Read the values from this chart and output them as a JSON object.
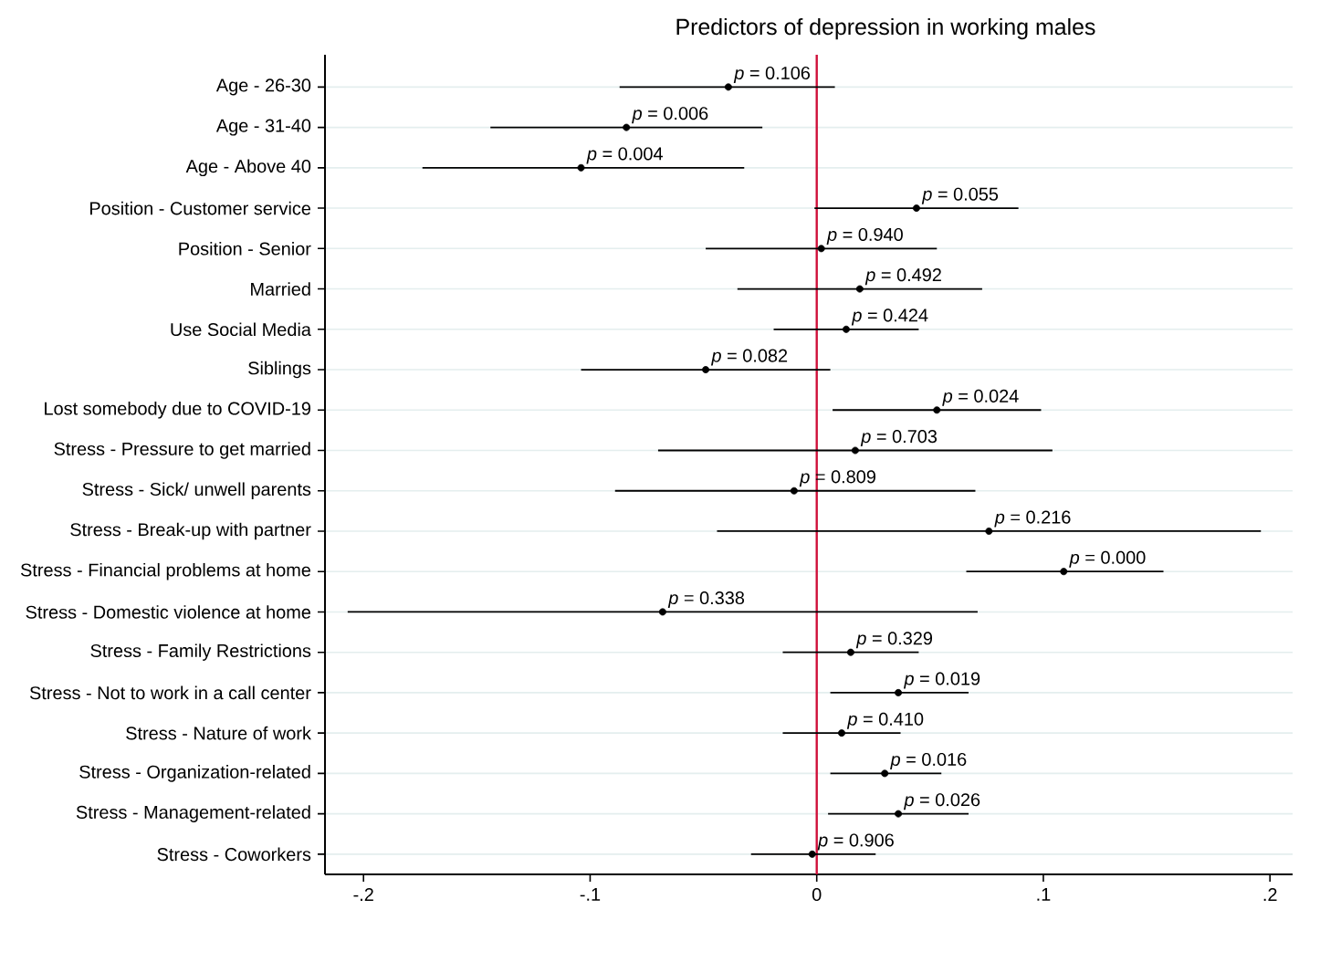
{
  "chart_data": {
    "type": "scatter",
    "orientation": "horizontal",
    "title": "Predictors of depression in working males",
    "categories": [
      "Age - 26-30",
      "Age - 31-40",
      "Age - Above 40",
      "Position - Customer service",
      "Position - Senior",
      "Married",
      "Use Social Media",
      "Siblings",
      "Lost somebody due to COVID-19",
      "Stress - Pressure to get married",
      "Stress - Sick/ unwell parents",
      "Stress - Break-up with partner",
      "Stress - Financial problems at home",
      "Stress - Domestic violence at home",
      "Stress - Family Restrictions",
      "Stress - Not to work in a call center",
      "Stress - Nature of work",
      "Stress - Organization-related",
      "Stress - Management-related",
      "Stress - Coworkers"
    ],
    "values": [
      -0.039,
      -0.084,
      -0.104,
      0.044,
      0.002,
      0.019,
      0.013,
      -0.049,
      0.053,
      0.017,
      -0.01,
      0.076,
      0.109,
      -0.068,
      0.015,
      0.036,
      0.011,
      0.03,
      0.036,
      -0.002
    ],
    "errors": [
      [
        -0.087,
        0.008
      ],
      [
        -0.144,
        -0.024
      ],
      [
        -0.174,
        -0.032
      ],
      [
        -0.001,
        0.089
      ],
      [
        -0.049,
        0.053
      ],
      [
        -0.035,
        0.073
      ],
      [
        -0.019,
        0.045
      ],
      [
        -0.104,
        0.006
      ],
      [
        0.007,
        0.099
      ],
      [
        -0.07,
        0.104
      ],
      [
        -0.089,
        0.07
      ],
      [
        -0.044,
        0.196
      ],
      [
        0.066,
        0.153
      ],
      [
        -0.207,
        0.071
      ],
      [
        -0.015,
        0.045
      ],
      [
        0.006,
        0.067
      ],
      [
        -0.015,
        0.037
      ],
      [
        0.006,
        0.055
      ],
      [
        0.005,
        0.067
      ],
      [
        -0.029,
        0.026
      ]
    ],
    "annotations": [
      {
        "text": "*p* = 0.106",
        "x": -0.039,
        "y": "Age - 26-30"
      },
      {
        "text": "*p* = 0.006",
        "x": -0.084,
        "y": "Age - 31-40"
      },
      {
        "text": "*p* = 0.004",
        "x": -0.104,
        "y": "Age - Above 40"
      },
      {
        "text": "*p* = 0.055",
        "x": 0.044,
        "y": "Position - Customer service"
      },
      {
        "text": "*p* = 0.940",
        "x": 0.002,
        "y": "Position - Senior"
      },
      {
        "text": "*p* = 0.492",
        "x": 0.019,
        "y": "Married"
      },
      {
        "text": "*p* = 0.424",
        "x": 0.013,
        "y": "Use Social Media"
      },
      {
        "text": "*p* = 0.082",
        "x": -0.049,
        "y": "Siblings"
      },
      {
        "text": "*p* = 0.024",
        "x": 0.053,
        "y": "Lost somebody due to COVID-19"
      },
      {
        "text": "*p* = 0.703",
        "x": 0.017,
        "y": "Stress - Pressure to get married"
      },
      {
        "text": "*p* = 0.809",
        "x": -0.01,
        "y": "Stress - Sick/ unwell parents"
      },
      {
        "text": "*p* = 0.216",
        "x": 0.076,
        "y": "Stress - Break-up with partner"
      },
      {
        "text": "*p* = 0.000",
        "x": 0.109,
        "y": "Stress - Financial problems at home"
      },
      {
        "text": "*p* = 0.338",
        "x": -0.068,
        "y": "Stress - Domestic violence at home"
      },
      {
        "text": "*p* = 0.329",
        "x": 0.015,
        "y": "Stress - Family Restrictions"
      },
      {
        "text": "*p* = 0.019",
        "x": 0.036,
        "y": "Stress - Not to work in a call center"
      },
      {
        "text": "*p* = 0.410",
        "x": 0.011,
        "y": "Stress - Nature of work"
      },
      {
        "text": "*p* = 0.016",
        "x": 0.03,
        "y": "Stress - Organization-related"
      },
      {
        "text": "*p* = 0.026",
        "x": 0.036,
        "y": "Stress - Management-related"
      },
      {
        "text": "*p* = 0.906",
        "x": -0.002,
        "y": "Stress - Coworkers"
      }
    ],
    "color": "#000000",
    "marker": "circle",
    "grid": "y",
    "xlim": [
      -0.217,
      0.21
    ],
    "xticks": [
      {
        "value": -0.2,
        "label": "-.2"
      },
      {
        "value": -0.1,
        "label": "-.1"
      },
      0,
      {
        "value": 0.1,
        "label": ".1"
      },
      {
        "value": 0.2,
        "label": ".2"
      }
    ],
    "ref_lines": [
      {
        "axis": "x",
        "value": 0,
        "color": "#d0103a"
      }
    ]
  }
}
